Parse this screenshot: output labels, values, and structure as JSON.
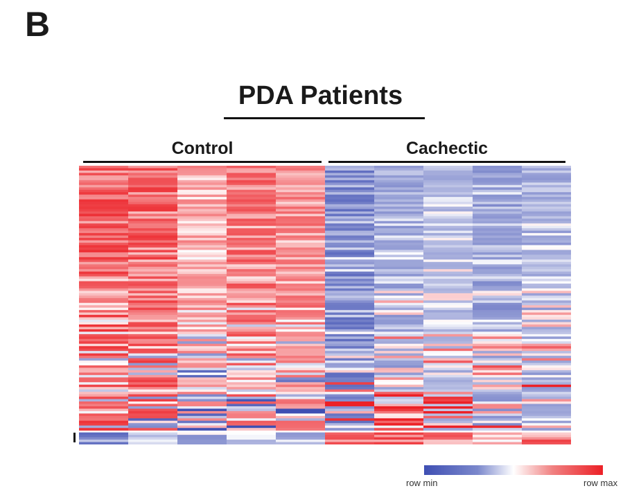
{
  "panel_label": "B",
  "title": "PDA Patients",
  "legend": {
    "min_label": "row min",
    "max_label": "row max",
    "colors": [
      "#3f4fb3",
      "#ffffff",
      "#ec2026"
    ]
  },
  "chart_data": {
    "type": "heatmap",
    "title": "PDA Patients",
    "groups": [
      {
        "name": "Control",
        "columns": 5
      },
      {
        "name": "Cachectic",
        "columns": 5
      }
    ],
    "scale": {
      "min_label": "row min",
      "max_label": "row max"
    },
    "row_clusters": [
      {
        "rows": 110,
        "description": "higher in Control",
        "column_means": [
          0.95,
          0.93,
          0.78,
          0.9,
          0.84,
          0.1,
          0.2,
          0.26,
          0.18,
          0.22
        ]
      },
      {
        "rows": 5,
        "description": "higher in Cachectic",
        "column_means": [
          0.08,
          0.25,
          0.18,
          0.28,
          0.22,
          0.93,
          0.96,
          0.88,
          0.72,
          0.95
        ]
      }
    ]
  }
}
